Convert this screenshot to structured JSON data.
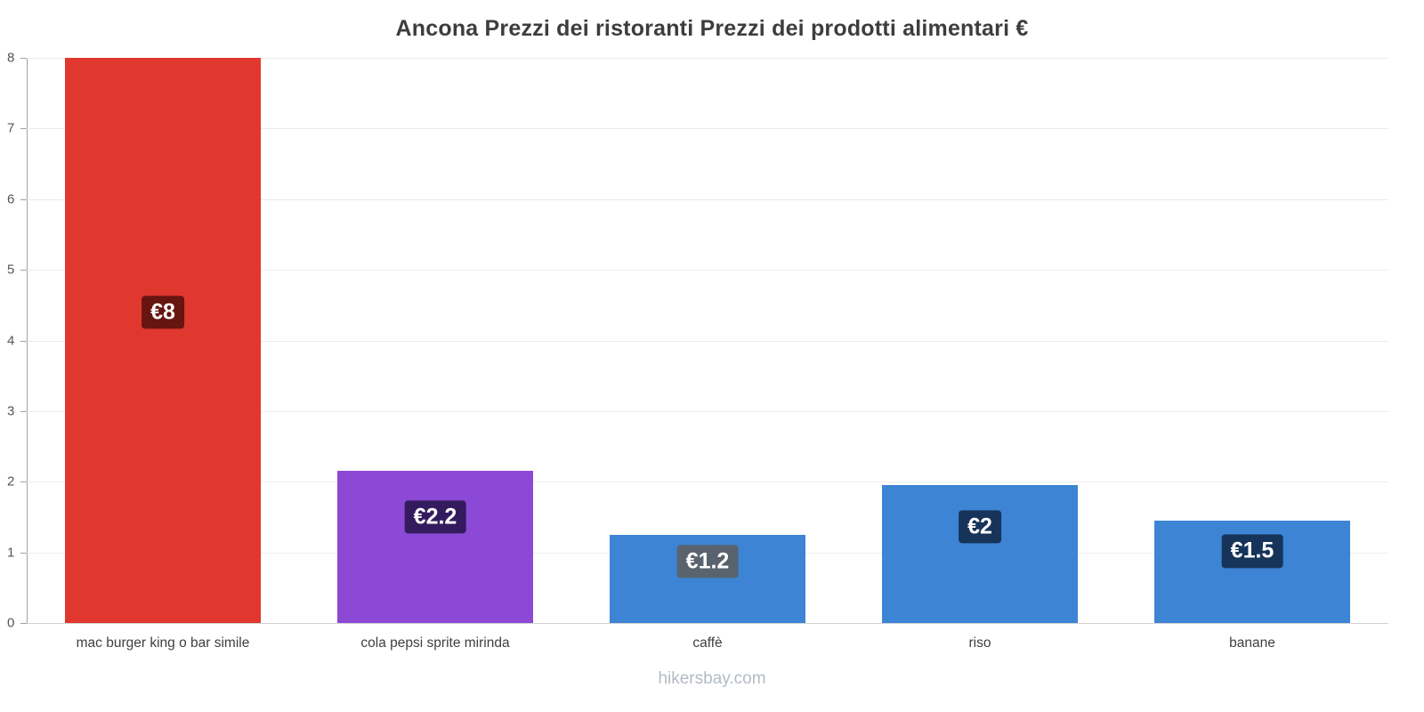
{
  "page": {
    "title": "Ancona Prezzi dei ristoranti Prezzi dei prodotti alimentari €",
    "footer": "hikersbay.com"
  },
  "chart_data": {
    "type": "bar",
    "title": "Ancona Prezzi dei ristoranti Prezzi dei prodotti alimentari €",
    "categories": [
      "mac burger king o bar simile",
      "cola pepsi sprite mirinda",
      "caffè",
      "riso",
      "banane"
    ],
    "values": [
      8,
      2.15,
      1.25,
      1.95,
      1.45
    ],
    "value_labels": [
      "€8",
      "€2.2",
      "€1.2",
      "€2",
      "€1.5"
    ],
    "bar_colors": [
      "#e0372f",
      "#8b49d6",
      "#3d84d4",
      "#3d84d4",
      "#3d84d4"
    ],
    "label_bg_colors": [
      "#671511",
      "#331b5e",
      "#59636e",
      "#16345a",
      "#16345a"
    ],
    "xlabel": "",
    "ylabel": "",
    "ylim": [
      0,
      8
    ],
    "yticks": [
      0,
      1,
      2,
      3,
      4,
      5,
      6,
      7,
      8
    ],
    "grid": true,
    "legend": "none",
    "watermark": "hikersbay.com"
  }
}
